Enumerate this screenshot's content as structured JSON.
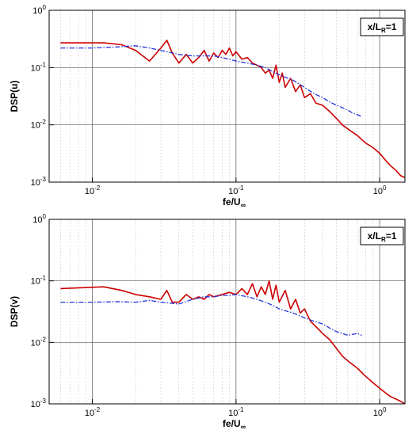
{
  "chart_data": [
    {
      "type": "line",
      "xscale": "log",
      "yscale": "log",
      "xlim": [
        0.005,
        1.5
      ],
      "ylim": [
        0.001,
        1
      ],
      "xlabel": "fe/U",
      "xlabel_sub": "∞",
      "ylabel": "DSP(u)",
      "annotation": {
        "main": "x/L",
        "sub": "R",
        "rest": "=1"
      },
      "xticks": [
        {
          "value": 0.01,
          "base": "10",
          "exp": "-2"
        },
        {
          "value": 0.1,
          "base": "10",
          "exp": "-1"
        },
        {
          "value": 1,
          "base": "10",
          "exp": "0"
        }
      ],
      "yticks": [
        {
          "value": 0.001,
          "base": "10",
          "exp": "-3"
        },
        {
          "value": 0.01,
          "base": "10",
          "exp": "-2"
        },
        {
          "value": 0.1,
          "base": "10",
          "exp": "-1"
        },
        {
          "value": 1,
          "base": "10",
          "exp": "0"
        }
      ],
      "grid": true,
      "series": [
        {
          "color": "#cc0000",
          "style": "solid",
          "x": [
            0.006,
            0.012,
            0.016,
            0.02,
            0.025,
            0.03,
            0.033,
            0.036,
            0.04,
            0.045,
            0.05,
            0.055,
            0.06,
            0.065,
            0.07,
            0.075,
            0.08,
            0.085,
            0.09,
            0.095,
            0.1,
            0.11,
            0.12,
            0.13,
            0.14,
            0.15,
            0.16,
            0.17,
            0.18,
            0.19,
            0.2,
            0.21,
            0.22,
            0.24,
            0.26,
            0.28,
            0.3,
            0.33,
            0.36,
            0.4,
            0.45,
            0.5,
            0.55,
            0.6,
            0.7,
            0.8,
            0.9,
            1.0,
            1.1,
            1.2,
            1.3,
            1.4,
            1.5
          ],
          "y": [
            0.27,
            0.27,
            0.25,
            0.2,
            0.13,
            0.22,
            0.3,
            0.18,
            0.12,
            0.17,
            0.12,
            0.15,
            0.2,
            0.13,
            0.18,
            0.15,
            0.2,
            0.17,
            0.22,
            0.16,
            0.19,
            0.14,
            0.15,
            0.12,
            0.11,
            0.1,
            0.08,
            0.09,
            0.065,
            0.11,
            0.055,
            0.08,
            0.045,
            0.065,
            0.038,
            0.05,
            0.03,
            0.035,
            0.024,
            0.022,
            0.017,
            0.013,
            0.01,
            0.0085,
            0.0065,
            0.0048,
            0.004,
            0.0032,
            0.0024,
            0.0019,
            0.0016,
            0.0013,
            0.0012
          ]
        },
        {
          "color": "#2233dd",
          "style": "dashdot",
          "x": [
            0.006,
            0.01,
            0.015,
            0.02,
            0.025,
            0.03,
            0.04,
            0.05,
            0.06,
            0.07,
            0.08,
            0.09,
            0.1,
            0.12,
            0.14,
            0.16,
            0.18,
            0.2,
            0.25,
            0.3,
            0.35,
            0.4,
            0.45,
            0.5,
            0.55,
            0.6,
            0.65,
            0.7,
            0.75
          ],
          "y": [
            0.22,
            0.22,
            0.23,
            0.24,
            0.22,
            0.2,
            0.17,
            0.16,
            0.16,
            0.16,
            0.15,
            0.14,
            0.13,
            0.12,
            0.11,
            0.1,
            0.085,
            0.075,
            0.06,
            0.045,
            0.035,
            0.03,
            0.025,
            0.022,
            0.02,
            0.018,
            0.016,
            0.015,
            0.014
          ]
        }
      ]
    },
    {
      "type": "line",
      "xscale": "log",
      "yscale": "log",
      "xlim": [
        0.005,
        1.5
      ],
      "ylim": [
        0.001,
        1
      ],
      "xlabel": "fe/U",
      "xlabel_sub": "∞",
      "ylabel": "DSP(v)",
      "annotation": {
        "main": "x/L",
        "sub": "R",
        "rest": "=1"
      },
      "xticks": [
        {
          "value": 0.01,
          "base": "10",
          "exp": "-2"
        },
        {
          "value": 0.1,
          "base": "10",
          "exp": "-1"
        },
        {
          "value": 1,
          "base": "10",
          "exp": "0"
        }
      ],
      "yticks": [
        {
          "value": 0.001,
          "base": "10",
          "exp": "-3"
        },
        {
          "value": 0.01,
          "base": "10",
          "exp": "-2"
        },
        {
          "value": 0.1,
          "base": "10",
          "exp": "-1"
        },
        {
          "value": 1,
          "base": "10",
          "exp": "0"
        }
      ],
      "grid": true,
      "series": [
        {
          "color": "#cc0000",
          "style": "solid",
          "x": [
            0.006,
            0.012,
            0.016,
            0.02,
            0.025,
            0.03,
            0.033,
            0.036,
            0.04,
            0.045,
            0.05,
            0.055,
            0.06,
            0.065,
            0.07,
            0.08,
            0.09,
            0.1,
            0.11,
            0.12,
            0.13,
            0.14,
            0.15,
            0.16,
            0.17,
            0.18,
            0.19,
            0.2,
            0.22,
            0.24,
            0.26,
            0.28,
            0.3,
            0.33,
            0.36,
            0.4,
            0.45,
            0.5,
            0.55,
            0.6,
            0.7,
            0.8,
            0.9,
            1.0,
            1.1,
            1.2,
            1.3,
            1.4,
            1.5
          ],
          "y": [
            0.075,
            0.08,
            0.07,
            0.06,
            0.055,
            0.05,
            0.07,
            0.045,
            0.045,
            0.06,
            0.05,
            0.055,
            0.05,
            0.06,
            0.055,
            0.06,
            0.065,
            0.06,
            0.075,
            0.06,
            0.09,
            0.055,
            0.08,
            0.06,
            0.1,
            0.05,
            0.085,
            0.045,
            0.07,
            0.035,
            0.05,
            0.03,
            0.035,
            0.022,
            0.018,
            0.014,
            0.011,
            0.008,
            0.006,
            0.005,
            0.0038,
            0.0028,
            0.0022,
            0.0018,
            0.0015,
            0.0013,
            0.0012,
            0.0011,
            0.001
          ]
        },
        {
          "color": "#2233dd",
          "style": "dashdot",
          "x": [
            0.006,
            0.01,
            0.015,
            0.02,
            0.025,
            0.03,
            0.04,
            0.05,
            0.06,
            0.07,
            0.08,
            0.09,
            0.1,
            0.12,
            0.14,
            0.16,
            0.18,
            0.2,
            0.25,
            0.3,
            0.35,
            0.4,
            0.45,
            0.5,
            0.55,
            0.6,
            0.65,
            0.7,
            0.75
          ],
          "y": [
            0.045,
            0.045,
            0.046,
            0.045,
            0.048,
            0.045,
            0.042,
            0.05,
            0.055,
            0.055,
            0.058,
            0.058,
            0.06,
            0.055,
            0.05,
            0.045,
            0.04,
            0.035,
            0.03,
            0.025,
            0.022,
            0.02,
            0.017,
            0.015,
            0.014,
            0.013,
            0.0135,
            0.014,
            0.013
          ]
        }
      ]
    }
  ]
}
